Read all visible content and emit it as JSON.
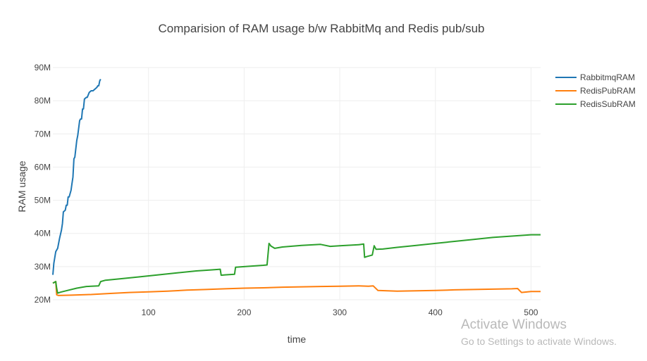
{
  "chart_data": {
    "type": "line",
    "title": "Comparision of RAM usage b/w RabbitMq and Redis pub/sub",
    "xlabel": "time",
    "ylabel": "RAM usage",
    "xlim": [
      0,
      510
    ],
    "ylim": [
      20,
      90
    ],
    "x_ticks": [
      100,
      200,
      300,
      400,
      500
    ],
    "x_tick_labels": [
      "100",
      "200",
      "300",
      "400",
      "500"
    ],
    "y_ticks": [
      20,
      30,
      40,
      50,
      60,
      70,
      80,
      90
    ],
    "y_tick_labels": [
      "20M",
      "30M",
      "40M",
      "50M",
      "60M",
      "70M",
      "80M",
      "90M"
    ],
    "grid": true,
    "legend_position": "top-right",
    "series": [
      {
        "name": "RabbitmqRAM",
        "color": "#1f77b4",
        "x": [
          0,
          1,
          3,
          5,
          7,
          9,
          10,
          11,
          13,
          14,
          15,
          16,
          17,
          19,
          20,
          21,
          22,
          23,
          25,
          26,
          28,
          29,
          30,
          31,
          32,
          33,
          35,
          36,
          38,
          40,
          42,
          44,
          46,
          47,
          48,
          49,
          50
        ],
        "y": [
          27.5,
          31,
          34.5,
          35.5,
          38.5,
          41,
          43,
          46.5,
          47,
          48.5,
          48.5,
          51,
          51,
          53,
          55,
          57,
          62.5,
          63,
          68,
          69.5,
          74,
          74.5,
          74.5,
          77.5,
          77.5,
          80.5,
          81,
          81,
          82.5,
          83,
          83,
          83.5,
          84,
          84.5,
          84.5,
          86,
          86.5
        ]
      },
      {
        "name": "RedisPubRAM",
        "color": "#ff7f0e",
        "x": [
          0,
          3,
          4,
          6,
          20,
          40,
          60,
          80,
          100,
          120,
          140,
          160,
          180,
          200,
          220,
          240,
          260,
          280,
          300,
          320,
          330,
          335,
          340,
          360,
          380,
          400,
          420,
          440,
          460,
          480,
          486,
          490,
          500,
          510
        ],
        "y": [
          25,
          25.5,
          21.5,
          21.3,
          21.4,
          21.6,
          21.9,
          22.2,
          22.4,
          22.6,
          22.9,
          23.1,
          23.3,
          23.5,
          23.6,
          23.8,
          23.9,
          24.0,
          24.1,
          24.2,
          24.1,
          24.2,
          22.8,
          22.6,
          22.7,
          22.8,
          23.0,
          23.1,
          23.2,
          23.3,
          23.4,
          22.2,
          22.5,
          22.5
        ]
      },
      {
        "name": "RedisSubRAM",
        "color": "#2ca02c",
        "x": [
          0,
          3,
          4,
          5,
          8,
          15,
          25,
          35,
          48,
          50,
          55,
          70,
          90,
          110,
          130,
          150,
          165,
          175,
          176,
          180,
          190,
          191,
          200,
          220,
          224,
          226,
          228,
          232,
          240,
          260,
          280,
          290,
          300,
          320,
          325,
          326,
          328,
          334,
          336,
          338,
          345,
          360,
          380,
          400,
          420,
          440,
          460,
          480,
          500,
          510
        ],
        "y": [
          25,
          25.5,
          23.5,
          22.0,
          22.3,
          22.8,
          23.5,
          24.0,
          24.2,
          25.5,
          25.9,
          26.3,
          26.9,
          27.5,
          28.1,
          28.7,
          29.0,
          29.2,
          27.4,
          27.5,
          27.7,
          29.8,
          30.0,
          30.4,
          30.5,
          37.0,
          36.2,
          35.5,
          35.9,
          36.4,
          36.7,
          36.1,
          36.3,
          36.6,
          36.8,
          32.8,
          33.0,
          33.5,
          36.3,
          35.2,
          35.3,
          35.8,
          36.4,
          37.0,
          37.6,
          38.2,
          38.8,
          39.2,
          39.6,
          39.6
        ]
      }
    ]
  },
  "watermark": {
    "title": "Activate Windows",
    "subtitle": "Go to Settings to activate Windows."
  }
}
